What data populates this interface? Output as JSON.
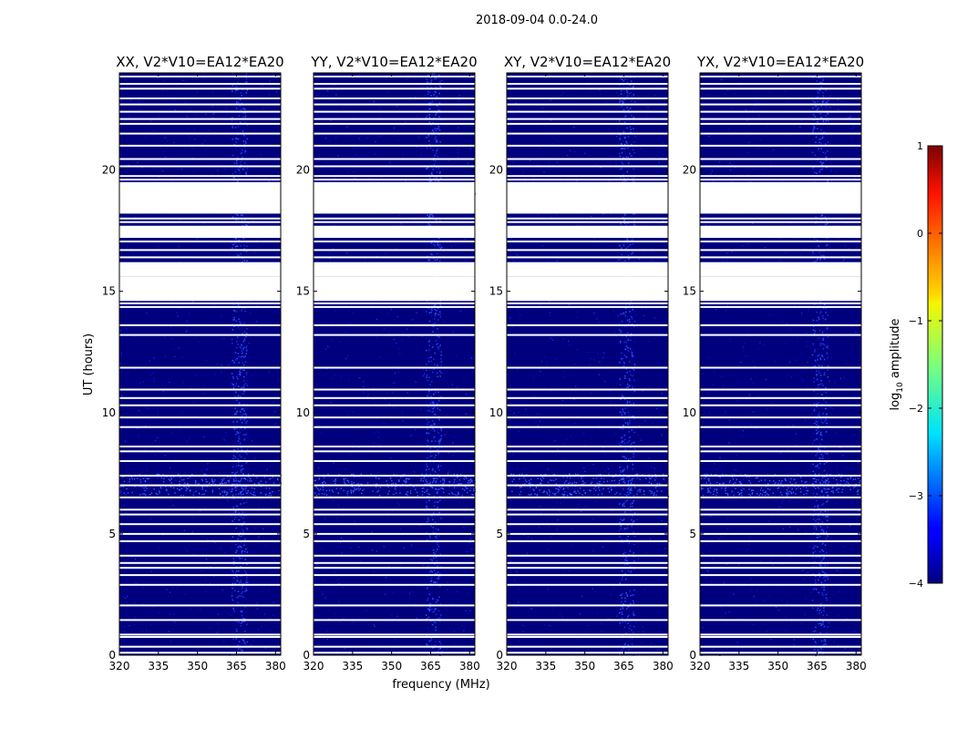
{
  "figure_title": "2018-09-04 0.0-24.0",
  "chart_data": {
    "type": "heatmap",
    "title": "2018-09-04 0.0-24.0",
    "xlabel": "frequency (MHz)",
    "ylabel": "UT (hours)",
    "xlim": [
      320,
      382
    ],
    "ylim": [
      0,
      24
    ],
    "xticks": [
      320,
      335,
      350,
      365,
      380
    ],
    "yticks": [
      0,
      5,
      10,
      15,
      20
    ],
    "panels": [
      {
        "title": "XX, V2*V10=EA12*EA20",
        "pol": "XX"
      },
      {
        "title": "YY, V2*V10=EA12*EA20",
        "pol": "YY"
      },
      {
        "title": "XY, V2*V10=EA12*EA20",
        "pol": "XY"
      },
      {
        "title": "YX, V2*V10=EA12*EA20",
        "pol": "YX"
      }
    ],
    "colorbar": {
      "label": "log10 amplitude",
      "label_main": "log",
      "label_sub": "10",
      "label_rest": " amplitude",
      "range": [
        -4,
        1
      ],
      "ticks": [
        "1",
        "0",
        "−1",
        "−2",
        "−3",
        "−4"
      ],
      "colormap": "jet"
    },
    "background_color": "#00007f",
    "flagged_color": "#ffffff",
    "flagged_blocks_hours": [
      [
        15.6,
        16.2
      ],
      [
        17.2,
        17.7
      ],
      [
        18.2,
        19.5
      ],
      [
        14.6,
        15.6
      ]
    ],
    "flagged_lines_hours": [
      0.1,
      0.35,
      0.75,
      0.85,
      1.45,
      2.05,
      2.9,
      3.3,
      3.6,
      3.8,
      4.1,
      4.7,
      5.0,
      5.4,
      5.8,
      6.0,
      6.5,
      7.0,
      7.4,
      8.0,
      8.4,
      8.6,
      9.4,
      9.8,
      10.3,
      10.6,
      10.95,
      11.85,
      13.2,
      13.6,
      14.35,
      14.5,
      15.85,
      16.1,
      16.4,
      16.7,
      17.05,
      17.85,
      18.0,
      19.6,
      19.75,
      20.15,
      20.45,
      21.0,
      21.5,
      21.9,
      22.1,
      22.4,
      22.7,
      22.95,
      23.35,
      23.55,
      23.85
    ],
    "rfi_bands_mhz": [
      [
        363,
        369
      ]
    ]
  }
}
